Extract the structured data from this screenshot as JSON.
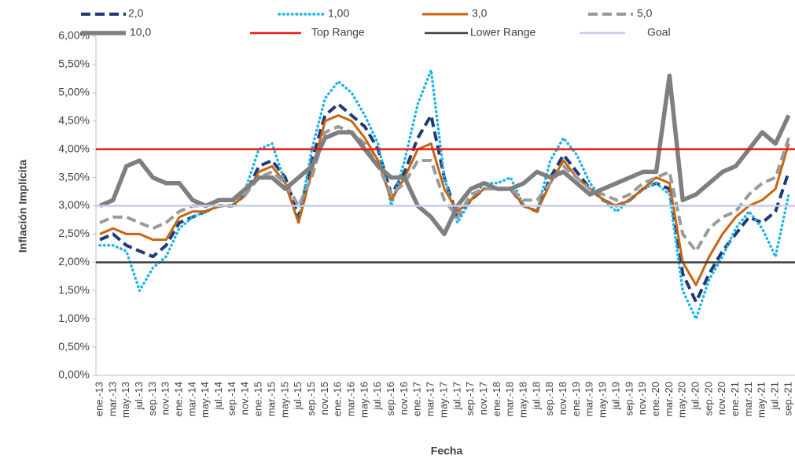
{
  "chart_data": {
    "type": "line",
    "x_label": "Fecha",
    "y_label": "Inflación Implícita",
    "categories": [
      "ene.-13",
      "mar.-13",
      "may.-13",
      "jul.-13",
      "sep.-13",
      "nov.-13",
      "ene.-14",
      "mar.-14",
      "may.-14",
      "jul.-14",
      "sep.-14",
      "nov.-14",
      "ene.-15",
      "mar.-15",
      "may.-15",
      "jul.-15",
      "sep.-15",
      "nov.-15",
      "ene.-16",
      "mar.-16",
      "may.-16",
      "jul.-16",
      "sep.-16",
      "nov.-16",
      "ene.-17",
      "mar.-17",
      "may.-17",
      "jul.-17",
      "sep.-17",
      "nov.-17",
      "ene.-18",
      "mar.-18",
      "may.-18",
      "jul.-18",
      "sep.-18",
      "nov.-18",
      "ene.-19",
      "mar.-19",
      "may.-19",
      "jul.-19",
      "sep.-19",
      "nov.-19",
      "ene.-20",
      "mar.-20",
      "may.-20",
      "jul.-20",
      "sep.-20",
      "nov.-20",
      "ene.-21",
      "mar.-21",
      "may.-21",
      "jul.-21",
      "sep.-21"
    ],
    "series": [
      {
        "name": "2,0",
        "color": "#1f3a7a",
        "style": "dashed",
        "values": [
          2.4,
          2.5,
          2.3,
          2.2,
          2.1,
          2.3,
          2.7,
          2.8,
          2.9,
          3.0,
          3.0,
          3.2,
          3.7,
          3.8,
          3.5,
          2.8,
          3.8,
          4.6,
          4.8,
          4.6,
          4.4,
          4.0,
          3.2,
          3.6,
          4.2,
          4.6,
          3.5,
          2.8,
          3.1,
          3.3,
          3.3,
          3.3,
          3.0,
          2.9,
          3.5,
          3.9,
          3.6,
          3.3,
          3.1,
          3.0,
          3.1,
          3.3,
          3.4,
          3.3,
          1.8,
          1.3,
          1.8,
          2.2,
          2.5,
          2.8,
          2.7,
          2.9,
          3.6
        ]
      },
      {
        "name": "1,00",
        "color": "#1fb4e8",
        "style": "dotted",
        "values": [
          2.3,
          2.3,
          2.2,
          1.5,
          1.9,
          2.1,
          2.6,
          2.8,
          2.9,
          3.0,
          3.0,
          3.3,
          4.0,
          4.1,
          3.4,
          2.7,
          4.0,
          4.9,
          5.2,
          5.0,
          4.6,
          4.1,
          3.0,
          3.8,
          4.8,
          5.4,
          3.5,
          2.7,
          3.1,
          3.4,
          3.4,
          3.5,
          3.0,
          2.9,
          3.8,
          4.2,
          3.9,
          3.4,
          3.1,
          2.9,
          3.1,
          3.3,
          3.4,
          3.2,
          1.5,
          1.0,
          1.7,
          2.1,
          2.6,
          2.9,
          2.6,
          2.1,
          3.2
        ]
      },
      {
        "name": "3,0",
        "color": "#c8640f",
        "style": "solid",
        "values": [
          2.5,
          2.6,
          2.5,
          2.5,
          2.4,
          2.4,
          2.8,
          2.9,
          2.9,
          3.0,
          3.0,
          3.2,
          3.6,
          3.7,
          3.4,
          2.7,
          3.6,
          4.5,
          4.6,
          4.5,
          4.2,
          3.8,
          3.1,
          3.5,
          4.0,
          4.1,
          3.3,
          2.9,
          3.1,
          3.3,
          3.3,
          3.3,
          3.0,
          2.9,
          3.4,
          3.8,
          3.5,
          3.3,
          3.1,
          3.0,
          3.1,
          3.3,
          3.5,
          3.4,
          2.0,
          1.6,
          2.1,
          2.5,
          2.8,
          3.0,
          3.1,
          3.3,
          4.1
        ]
      },
      {
        "name": "5,0",
        "color": "#9a9a9a",
        "style": "dashed",
        "values": [
          2.7,
          2.8,
          2.8,
          2.7,
          2.6,
          2.7,
          2.9,
          3.0,
          3.0,
          3.1,
          3.1,
          3.2,
          3.5,
          3.6,
          3.4,
          3.0,
          3.5,
          4.3,
          4.4,
          4.3,
          4.1,
          3.7,
          3.2,
          3.4,
          3.8,
          3.8,
          3.1,
          2.8,
          3.2,
          3.3,
          3.3,
          3.3,
          3.1,
          3.1,
          3.4,
          3.7,
          3.5,
          3.3,
          3.2,
          3.1,
          3.2,
          3.4,
          3.5,
          3.6,
          2.5,
          2.2,
          2.6,
          2.8,
          2.9,
          3.2,
          3.4,
          3.5,
          4.2
        ]
      },
      {
        "name": "10,0",
        "color": "#7f7f7f",
        "style": "thick",
        "values": [
          3.0,
          3.1,
          3.7,
          3.8,
          3.5,
          3.4,
          3.4,
          3.1,
          3.0,
          3.1,
          3.1,
          3.3,
          3.5,
          3.5,
          3.3,
          3.5,
          3.7,
          4.2,
          4.3,
          4.3,
          4.0,
          3.7,
          3.5,
          3.5,
          3.0,
          2.8,
          2.5,
          3.0,
          3.3,
          3.4,
          3.3,
          3.3,
          3.4,
          3.6,
          3.5,
          3.6,
          3.4,
          3.2,
          3.3,
          3.4,
          3.5,
          3.6,
          3.6,
          5.3,
          3.1,
          3.2,
          3.4,
          3.6,
          3.7,
          4.0,
          4.3,
          4.1,
          4.6
        ]
      }
    ],
    "reference_lines": [
      {
        "name": "Top Range",
        "value": 4,
        "color": "#e81919"
      },
      {
        "name": "Lower Range",
        "value": 2,
        "color": "#404040"
      },
      {
        "name": "Goal",
        "value": 3,
        "color": "#c6cde8"
      }
    ],
    "ylim": [
      0,
      6
    ],
    "yticks": [
      {
        "value": 0,
        "label": "0,00%"
      },
      {
        "value": 0.5,
        "label": "0,50%"
      },
      {
        "value": 1,
        "label": "1,00%"
      },
      {
        "value": 1.5,
        "label": "1,50%"
      },
      {
        "value": 2,
        "label": "2,00%"
      },
      {
        "value": 2.5,
        "label": "2,50%"
      },
      {
        "value": 3,
        "label": "3,00%"
      },
      {
        "value": 3.5,
        "label": "3,50%"
      },
      {
        "value": 4,
        "label": "4,00%"
      },
      {
        "value": 4.5,
        "label": "4,50%"
      },
      {
        "value": 5,
        "label": "5,00%"
      },
      {
        "value": 5.5,
        "label": "5,50%"
      },
      {
        "value": 6,
        "label": "6,00%"
      }
    ],
    "grid": false
  }
}
